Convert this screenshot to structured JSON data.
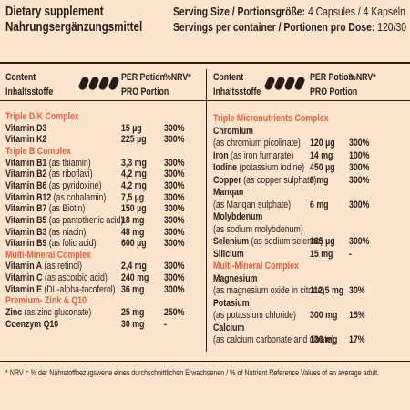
{
  "header": {
    "title": "Dietary supplement",
    "subtitle": "Nahrungsergänzungsmittel",
    "serving_label": "Serving Size / Portionsgröße:",
    "serving_value": "4 Capsules / 4 Kapseln",
    "servings_label": "Servings per container / Portionen pro Dose:",
    "servings_value": "120/30"
  },
  "columns": {
    "content": "Content",
    "content_de": "Inhaltsstoffe",
    "per": "PER Potion",
    "per_de": "PRO Portion",
    "nrv": "%NRV*"
  },
  "left": [
    {
      "section": "Triple D/K Complex"
    },
    {
      "name": "Vitamin D3",
      "amount": "15 µg",
      "nrv": "300%"
    },
    {
      "name": "Vitamin K2",
      "amount": "225 µg",
      "nrv": "300%"
    },
    {
      "section": "Triple B Complex"
    },
    {
      "name": "Vitamin B1",
      "note": "(as thiamin)",
      "amount": "3,3 mg",
      "nrv": "300%"
    },
    {
      "name": "Vitamin B2",
      "note": "(as riboflavi)",
      "amount": "4,2 mg",
      "nrv": "300%"
    },
    {
      "name": "Vitamin B6",
      "note": "(as pyridoxine)",
      "amount": "4,2 mg",
      "nrv": "300%"
    },
    {
      "name": "Vitamin B12",
      "note": "(as cobalamin)",
      "amount": "7,5 µg",
      "nrv": "300%"
    },
    {
      "name": "Vitamin B7",
      "note": "(as Biotin)",
      "amount": "150 µg",
      "nrv": "300%"
    },
    {
      "name": "Vitamin B5",
      "note": "(as pantothenic acid)",
      "amount": "18 mg",
      "nrv": "300%"
    },
    {
      "name": "Vitamin B3",
      "note": "(as niacin)",
      "amount": "48 mg",
      "nrv": "300%"
    },
    {
      "name": "Vitamin B9",
      "note": "(as folic acid)",
      "amount": "600 µg",
      "nrv": "300%"
    },
    {
      "section": "Multi-Mineral Complex"
    },
    {
      "name": "Vitamin A",
      "note": "(as retinol)",
      "amount": "2,4 mg",
      "nrv": "300%"
    },
    {
      "name": "Vitamin C",
      "note": "(as ascorbic acid)",
      "amount": "240 mg",
      "nrv": "300%"
    },
    {
      "name": "Vitamin E",
      "note": "(DL-alpha-tocoferol)",
      "amount": "36 mg",
      "nrv": "300%"
    },
    {
      "section": "Premium- Zink & Q10"
    },
    {
      "name": "Zinc",
      "note": "(as zinc gluconate)",
      "amount": "25 mg",
      "nrv": "250%"
    },
    {
      "name": "Coenzym Q10",
      "amount": "30 mg",
      "nrv": "-"
    }
  ],
  "right": [
    {
      "section": "Triple Micronutrients Complex"
    },
    {
      "name": "Chromium"
    },
    {
      "note": "(as chromium picolinate)",
      "amount": "120 µg",
      "nrv": "300%"
    },
    {
      "name": "Iron",
      "note": "(as iron fumarate)",
      "amount": "14 mg",
      "nrv": "100%"
    },
    {
      "name": "Iodine",
      "note": "(potassium iodine)",
      "amount": "450 µg",
      "nrv": "300%"
    },
    {
      "name": "Copper",
      "note": "(as copper sulphate)",
      "amount": "3 mg",
      "nrv": "300%"
    },
    {
      "name": "Manqan"
    },
    {
      "note": "(as Manqan sulphate)",
      "amount": "6 mg",
      "nrv": "300%"
    },
    {
      "name": "Molybdenum"
    },
    {
      "note": "(as sodium molybdenum)"
    },
    {
      "name": "Selenium",
      "note": "(as sodium selenite)",
      "amount": "165 µg",
      "nrv": "300%"
    },
    {
      "name": "Silicium",
      "amount": "15 mg",
      "nrv": "-"
    },
    {
      "section": "Multi-Mineral Complex"
    },
    {
      "name": "Magnesium"
    },
    {
      "note": "(as magnesium oxide in citrate)",
      "amount": "112,5 mg",
      "nrv": "30%"
    },
    {
      "name": "Potasium"
    },
    {
      "note": "(as potassium chloride)",
      "amount": "300 mg",
      "nrv": "15%"
    },
    {
      "name": "Calcium"
    },
    {
      "note": "(as calcium carbonate and citrate)",
      "amount": "136 mg",
      "nrv": "17%"
    }
  ],
  "footnote": "* NRV = % der Nährstoffbezugswerte eines durchschnittlichen Erwachsenen / % of Nutrient Reference Values of an average adult."
}
